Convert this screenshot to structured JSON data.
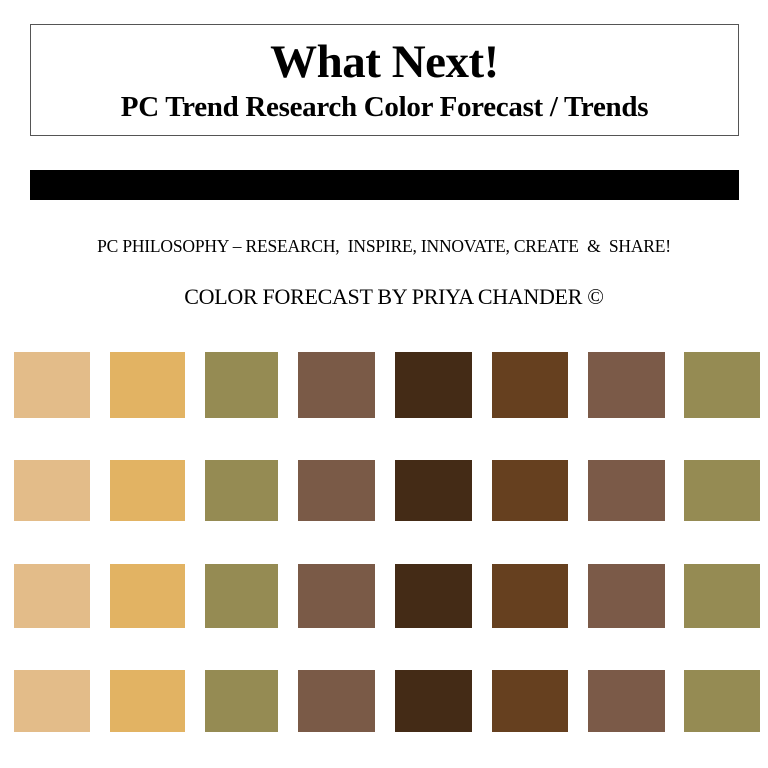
{
  "header": {
    "title": "What Next!",
    "subtitle": "PC Trend Research Color Forecast / Trends"
  },
  "divider_color": "#000000",
  "philosophy": "PC PHILOSOPHY – RESEARCH,  INSPIRE, INNOVATE, CREATE  &  SHARE!",
  "credit": "COLOR FORECAST BY PRIYA CHANDER ©",
  "palette": {
    "colors": [
      "#e3bc89",
      "#e2b363",
      "#958b53",
      "#7a5a47",
      "#442b16",
      "#66401f",
      "#7b5a48",
      "#958b53"
    ],
    "rows": 4
  }
}
